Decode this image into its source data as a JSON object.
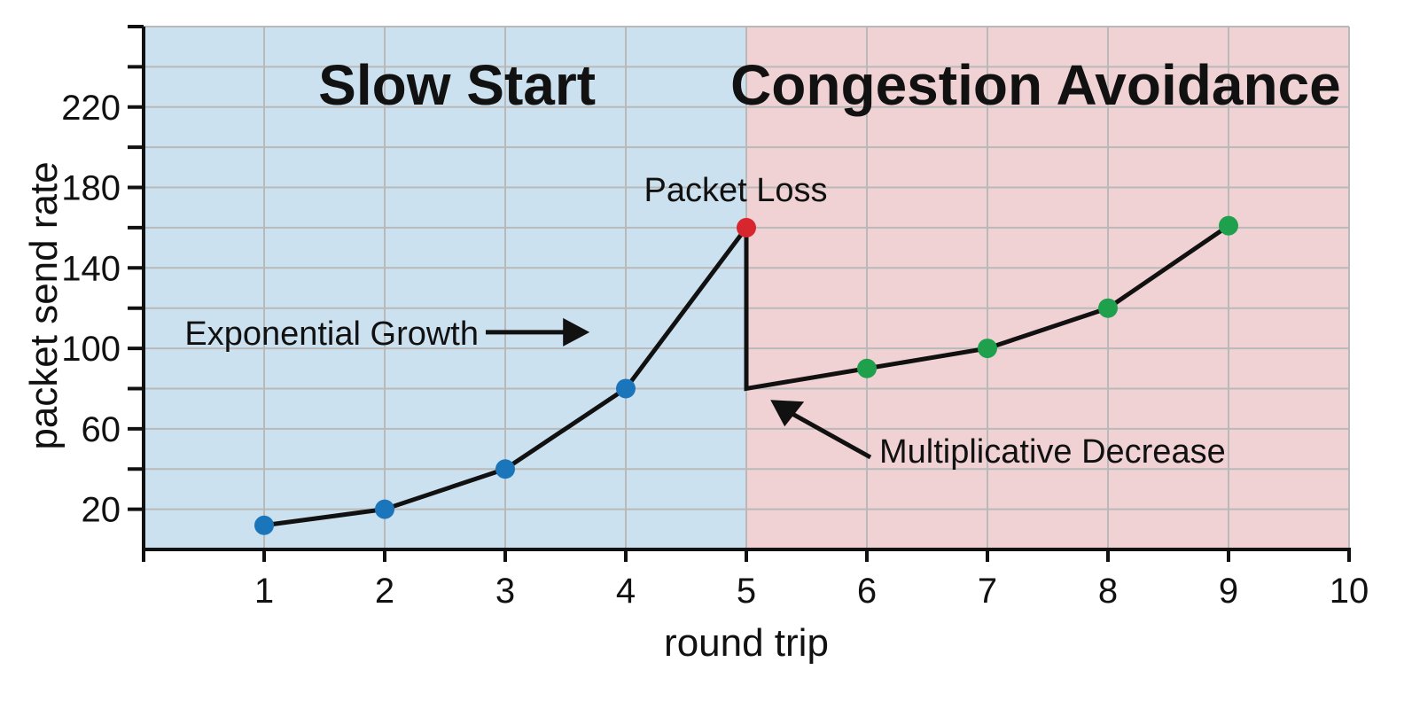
{
  "chart_data": {
    "type": "line",
    "title": "",
    "xlabel": "round trip",
    "ylabel": "packet send rate",
    "xlim": [
      0,
      10
    ],
    "ylim": [
      0,
      260
    ],
    "xticks": [
      1,
      2,
      3,
      4,
      5,
      6,
      7,
      8,
      9,
      10
    ],
    "yticks_labeled": [
      20,
      60,
      100,
      140,
      180,
      220
    ],
    "grid": true,
    "regions": [
      {
        "label": "Slow Start",
        "x_range": [
          0,
          5
        ],
        "color": "#cce1ef"
      },
      {
        "label": "Congestion Avoidance",
        "x_range": [
          5,
          10
        ],
        "color": "#f1d2d4"
      }
    ],
    "series": [
      {
        "x": [
          1,
          2,
          3,
          4,
          5,
          5,
          6,
          7,
          8,
          9
        ],
        "y": [
          12,
          20,
          40,
          80,
          160,
          80,
          90,
          100,
          120,
          161
        ]
      }
    ],
    "points": [
      {
        "x": 1,
        "y": 12,
        "color": "#1b75bb"
      },
      {
        "x": 2,
        "y": 20,
        "color": "#1b75bb"
      },
      {
        "x": 3,
        "y": 40,
        "color": "#1b75bb"
      },
      {
        "x": 4,
        "y": 80,
        "color": "#1b75bb"
      },
      {
        "x": 5,
        "y": 160,
        "color": "#d7262d"
      },
      {
        "x": 6,
        "y": 90,
        "color": "#1ea04c"
      },
      {
        "x": 7,
        "y": 100,
        "color": "#1ea04c"
      },
      {
        "x": 8,
        "y": 120,
        "color": "#1ea04c"
      },
      {
        "x": 9,
        "y": 161,
        "color": "#1ea04c"
      }
    ],
    "annotations": [
      {
        "text": "Packet Loss",
        "target": [
          5,
          160
        ]
      },
      {
        "text": "Exponential Growth",
        "target": [
          3.7,
          108
        ]
      },
      {
        "text": "Multiplicative Decrease",
        "target": [
          5.2,
          77
        ]
      }
    ],
    "colors": {
      "line": "#111111",
      "grid": "#b9b9b9",
      "axis": "#111111"
    }
  }
}
